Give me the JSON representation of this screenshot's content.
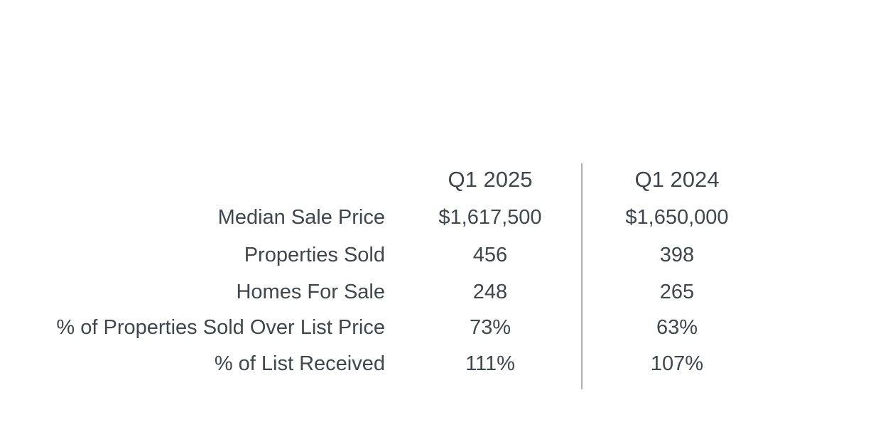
{
  "chart_data": {
    "type": "table",
    "columns": [
      "Q1 2025",
      "Q1 2024"
    ],
    "rows": [
      {
        "label": "Median Sale Price",
        "values": [
          "$1,617,500",
          "$1,650,000"
        ]
      },
      {
        "label": "Properties Sold",
        "values": [
          "456",
          "398"
        ]
      },
      {
        "label": "Homes For Sale",
        "values": [
          "248",
          "265"
        ]
      },
      {
        "label": "% of Properties Sold Over List Price",
        "values": [
          "73%",
          "63%"
        ]
      },
      {
        "label": "% of List Received",
        "values": [
          "111%",
          "107%"
        ]
      }
    ],
    "layout_hints": {
      "label_alignment": "right",
      "value_alignment": "center",
      "column_divider": "vertical-line-between-value-columns"
    }
  },
  "colors": {
    "text": "#40464e",
    "divider": "#b0b0b3",
    "background": "#ffffff"
  }
}
